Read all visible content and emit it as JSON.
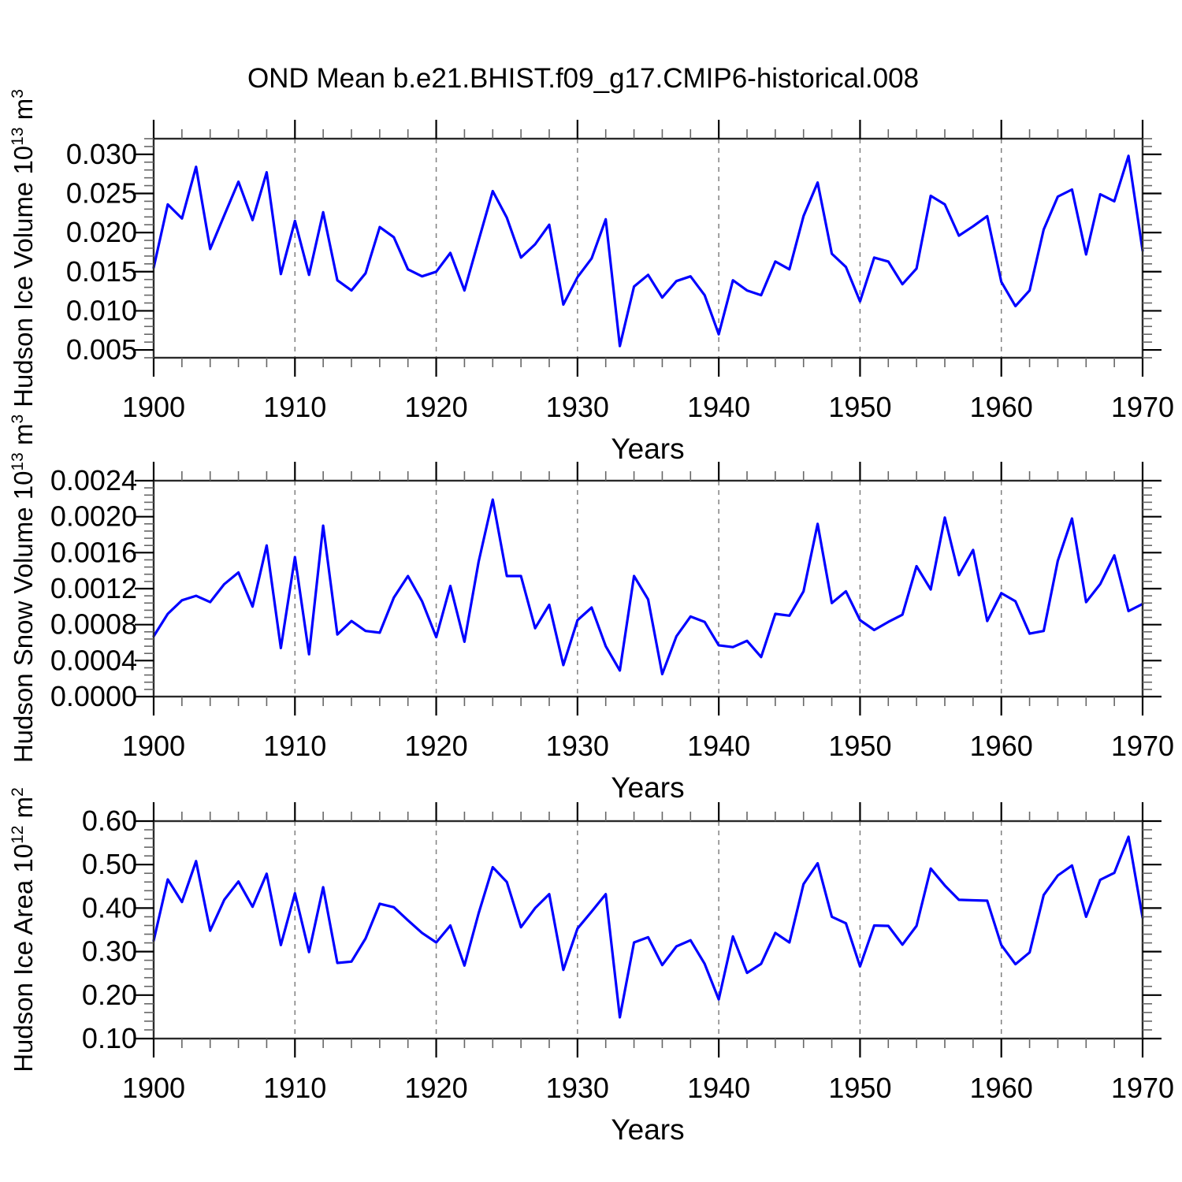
{
  "title": "OND Mean b.e21.BHIST.f09_g17.CMIP6-historical.008",
  "colors": {
    "series_line": "#0000ff",
    "gridline": "#808080",
    "frame": "#2a2a2a",
    "major_tick": "#000000",
    "minor_tick": "#666666",
    "text": "#000000",
    "background": "#ffffff"
  },
  "x_axis": {
    "label": "Years",
    "min": 1900,
    "max": 1970,
    "tick_labels": [
      "1900",
      "1910",
      "1920",
      "1930",
      "1940",
      "1950",
      "1960",
      "1970"
    ],
    "major_step": 10,
    "minor_step": 2,
    "grid_years": [
      1910,
      1920,
      1930,
      1940,
      1950,
      1960
    ]
  },
  "years": [
    1900,
    1901,
    1902,
    1903,
    1904,
    1905,
    1906,
    1907,
    1908,
    1909,
    1910,
    1911,
    1912,
    1913,
    1914,
    1915,
    1916,
    1917,
    1918,
    1919,
    1920,
    1921,
    1922,
    1923,
    1924,
    1925,
    1926,
    1927,
    1928,
    1929,
    1930,
    1931,
    1932,
    1933,
    1934,
    1935,
    1936,
    1937,
    1938,
    1939,
    1940,
    1941,
    1942,
    1943,
    1944,
    1945,
    1946,
    1947,
    1948,
    1949,
    1950,
    1951,
    1952,
    1953,
    1954,
    1955,
    1956,
    1957,
    1958,
    1959,
    1960,
    1961,
    1962,
    1963,
    1964,
    1965,
    1966,
    1967,
    1968,
    1969,
    1970
  ],
  "chart_data": [
    {
      "type": "line",
      "id": "ice-volume",
      "title": "",
      "xlabel": "Years",
      "ylabel_base": "Hudson Ice Volume 10",
      "ylabel_exp": "13",
      "ylabel_unit": " m",
      "ylabel_unit_exp": "3",
      "ylim": [
        0.004,
        0.032
      ],
      "yticks": [
        0.005,
        0.01,
        0.015,
        0.02,
        0.025,
        0.03
      ],
      "ytick_labels": [
        "0.005",
        "0.010",
        "0.015",
        "0.020",
        "0.025",
        "0.030"
      ],
      "yminor_step": 0.001,
      "grid": "vertical-dashed",
      "legend": "none",
      "values": [
        0.0155,
        0.0236,
        0.0218,
        0.0284,
        0.0179,
        0.0222,
        0.0265,
        0.0216,
        0.0277,
        0.0147,
        0.0215,
        0.0146,
        0.0226,
        0.0139,
        0.0126,
        0.0148,
        0.0207,
        0.0194,
        0.0153,
        0.0144,
        0.015,
        0.0174,
        0.0126,
        0.019,
        0.0253,
        0.0219,
        0.0168,
        0.0185,
        0.021,
        0.0108,
        0.0143,
        0.0167,
        0.0217,
        0.0055,
        0.0131,
        0.0146,
        0.0117,
        0.0138,
        0.0144,
        0.012,
        0.007,
        0.0139,
        0.0126,
        0.012,
        0.0163,
        0.0153,
        0.0221,
        0.0264,
        0.0173,
        0.0156,
        0.0112,
        0.0168,
        0.0163,
        0.0134,
        0.0154,
        0.0247,
        0.0236,
        0.0196,
        0.0208,
        0.0221,
        0.0137,
        0.0106,
        0.0126,
        0.0204,
        0.0246,
        0.0255,
        0.0172,
        0.0249,
        0.024,
        0.0298,
        0.0177
      ]
    },
    {
      "type": "line",
      "id": "snow-volume",
      "title": "",
      "xlabel": "Years",
      "ylabel_base": "Hudson Snow Volume 10",
      "ylabel_exp": "13",
      "ylabel_unit": " m",
      "ylabel_unit_exp": "3",
      "ylim": [
        0.0,
        0.0024
      ],
      "yticks": [
        0.0,
        0.0004,
        0.0008,
        0.0012,
        0.0016,
        0.002,
        0.0024
      ],
      "ytick_labels": [
        "0.0000",
        "0.0004",
        "0.0008",
        "0.0012",
        "0.0016",
        "0.0020",
        "0.0024"
      ],
      "yminor_step": 8e-05,
      "grid": "vertical-dashed",
      "legend": "none",
      "values": [
        0.00067,
        0.00092,
        0.00107,
        0.00112,
        0.00105,
        0.00125,
        0.00138,
        0.001,
        0.00168,
        0.00054,
        0.00155,
        0.00047,
        0.0019,
        0.00069,
        0.00084,
        0.00073,
        0.00071,
        0.0011,
        0.00134,
        0.00106,
        0.00066,
        0.00123,
        0.00061,
        0.0015,
        0.00219,
        0.00134,
        0.00134,
        0.00076,
        0.00102,
        0.00035,
        0.00085,
        0.00099,
        0.00056,
        0.00029,
        0.00134,
        0.00108,
        0.00025,
        0.00067,
        0.00089,
        0.00083,
        0.00057,
        0.00055,
        0.00062,
        0.00044,
        0.00092,
        0.0009,
        0.00117,
        0.00192,
        0.00104,
        0.00117,
        0.00085,
        0.00074,
        0.00083,
        0.00091,
        0.00145,
        0.00119,
        0.00199,
        0.00135,
        0.00163,
        0.00084,
        0.00115,
        0.00106,
        0.0007,
        0.00073,
        0.00151,
        0.00198,
        0.00105,
        0.00125,
        0.00157,
        0.00095,
        0.00103
      ]
    },
    {
      "type": "line",
      "id": "ice-area",
      "title": "",
      "xlabel": "Years",
      "ylabel_base": "Hudson Ice Area 10",
      "ylabel_exp": "12",
      "ylabel_unit": " m",
      "ylabel_unit_exp": "2",
      "ylim": [
        0.1,
        0.6
      ],
      "yticks": [
        0.1,
        0.2,
        0.3,
        0.4,
        0.5,
        0.6
      ],
      "ytick_labels": [
        "0.10",
        "0.20",
        "0.30",
        "0.40",
        "0.50",
        "0.60"
      ],
      "yminor_step": 0.02,
      "grid": "vertical-dashed",
      "legend": "none",
      "values": [
        0.325,
        0.466,
        0.414,
        0.508,
        0.348,
        0.419,
        0.461,
        0.403,
        0.479,
        0.315,
        0.434,
        0.299,
        0.448,
        0.274,
        0.277,
        0.33,
        0.41,
        0.402,
        0.372,
        0.343,
        0.321,
        0.36,
        0.268,
        0.388,
        0.494,
        0.46,
        0.356,
        0.4,
        0.432,
        0.258,
        0.353,
        0.392,
        0.432,
        0.149,
        0.321,
        0.333,
        0.269,
        0.312,
        0.326,
        0.272,
        0.19,
        0.335,
        0.251,
        0.272,
        0.343,
        0.321,
        0.455,
        0.503,
        0.38,
        0.365,
        0.266,
        0.36,
        0.359,
        0.316,
        0.359,
        0.491,
        0.452,
        0.419,
        0.418,
        0.417,
        0.315,
        0.271,
        0.298,
        0.43,
        0.475,
        0.498,
        0.38,
        0.465,
        0.481,
        0.564,
        0.378
      ]
    }
  ]
}
